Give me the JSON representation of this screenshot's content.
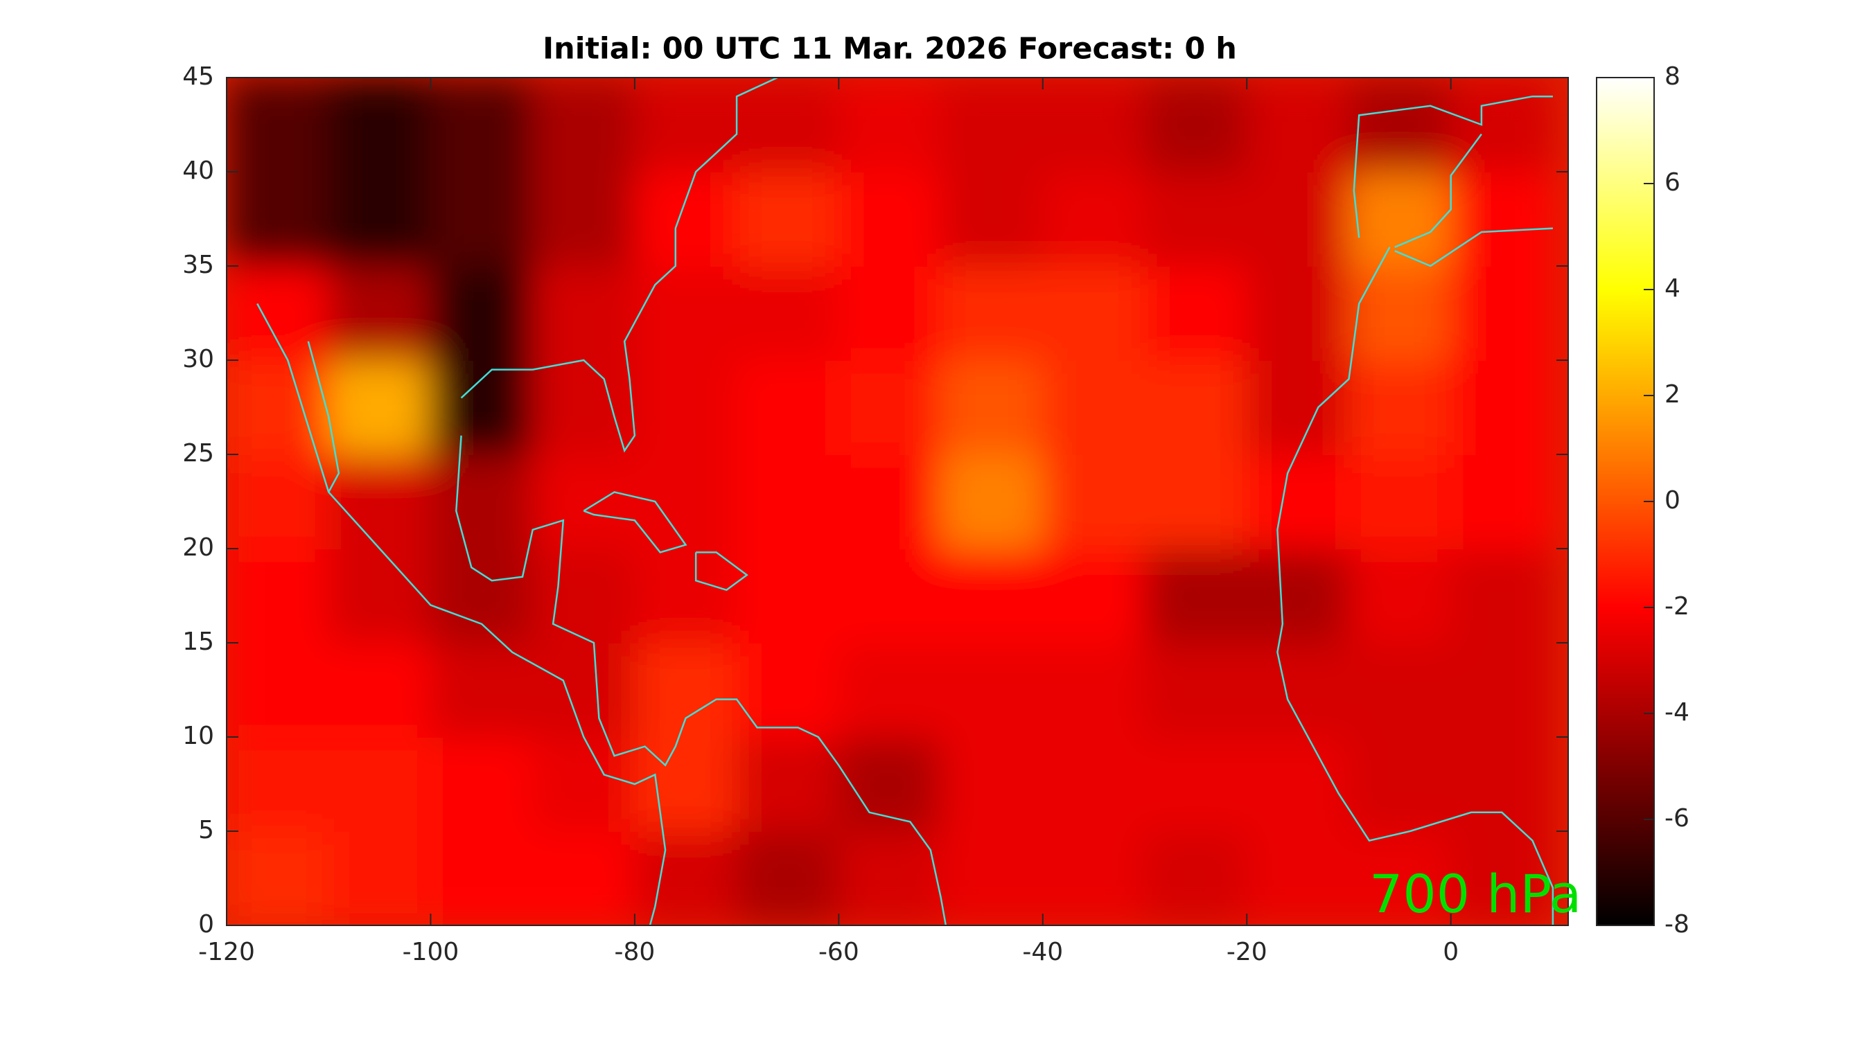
{
  "chart_data": {
    "type": "heatmap",
    "title": "Initial: 00 UTC 11 Mar. 2026 Forecast: 0 h",
    "annotation": "700 hPa",
    "annotation_color": "#00e000",
    "colormap": "hot",
    "clim": [
      -8,
      8
    ],
    "cticks": [
      -8,
      -6,
      -4,
      -2,
      0,
      2,
      4,
      6,
      8
    ],
    "xlim": [
      -120,
      11.5
    ],
    "ylim": [
      0,
      45
    ],
    "xticks": [
      -120,
      -100,
      -80,
      -60,
      -40,
      -20,
      0
    ],
    "yticks": [
      0,
      5,
      10,
      15,
      20,
      25,
      30,
      35,
      40,
      45
    ],
    "x": [
      -115,
      -105,
      -95,
      -85,
      -75,
      -65,
      -55,
      -45,
      -35,
      -25,
      -15,
      -5,
      5
    ],
    "y": [
      2.5,
      7.5,
      12.5,
      17.5,
      22.5,
      27.5,
      32.5,
      37.5,
      42.5
    ],
    "z": [
      [
        -1,
        -1.5,
        -2,
        -2,
        -3,
        -4,
        -3,
        -2.5,
        -2.5,
        -3,
        -2.5,
        -2.5,
        -3
      ],
      [
        -1.5,
        -1.5,
        -2,
        -2.5,
        -1,
        -3,
        -4,
        -2.5,
        -2.5,
        -2.5,
        -2.5,
        -3,
        -3
      ],
      [
        -2,
        -2,
        -3,
        -3,
        -1,
        -2,
        -2.5,
        -2.5,
        -2.5,
        -3,
        -3,
        -3,
        -3
      ],
      [
        -2,
        -3,
        -4,
        -3,
        -2.5,
        -2,
        -2,
        -2,
        -2,
        -4,
        -4,
        -2.5,
        -3
      ],
      [
        -1.5,
        -3,
        -4,
        -2.5,
        -2.5,
        -2,
        -2,
        1,
        -1,
        -1,
        -2,
        -1.5,
        -2
      ],
      [
        -1,
        2,
        -7,
        -3,
        -2.5,
        -2,
        -1.5,
        0,
        -1,
        -1,
        -3,
        -1,
        -2
      ],
      [
        -2,
        -4,
        -7,
        -3,
        -2.5,
        -2.5,
        -2,
        -1,
        -1,
        -2,
        -3,
        0,
        -2
      ],
      [
        -6,
        -7,
        -6,
        -4,
        -2,
        -1,
        -2,
        -3,
        -2.5,
        -3,
        -3,
        1,
        -2
      ],
      [
        -6,
        -7,
        -6,
        -4,
        -3,
        -3,
        -2.5,
        -3,
        -3,
        -4,
        -3,
        -4,
        -3
      ]
    ]
  }
}
